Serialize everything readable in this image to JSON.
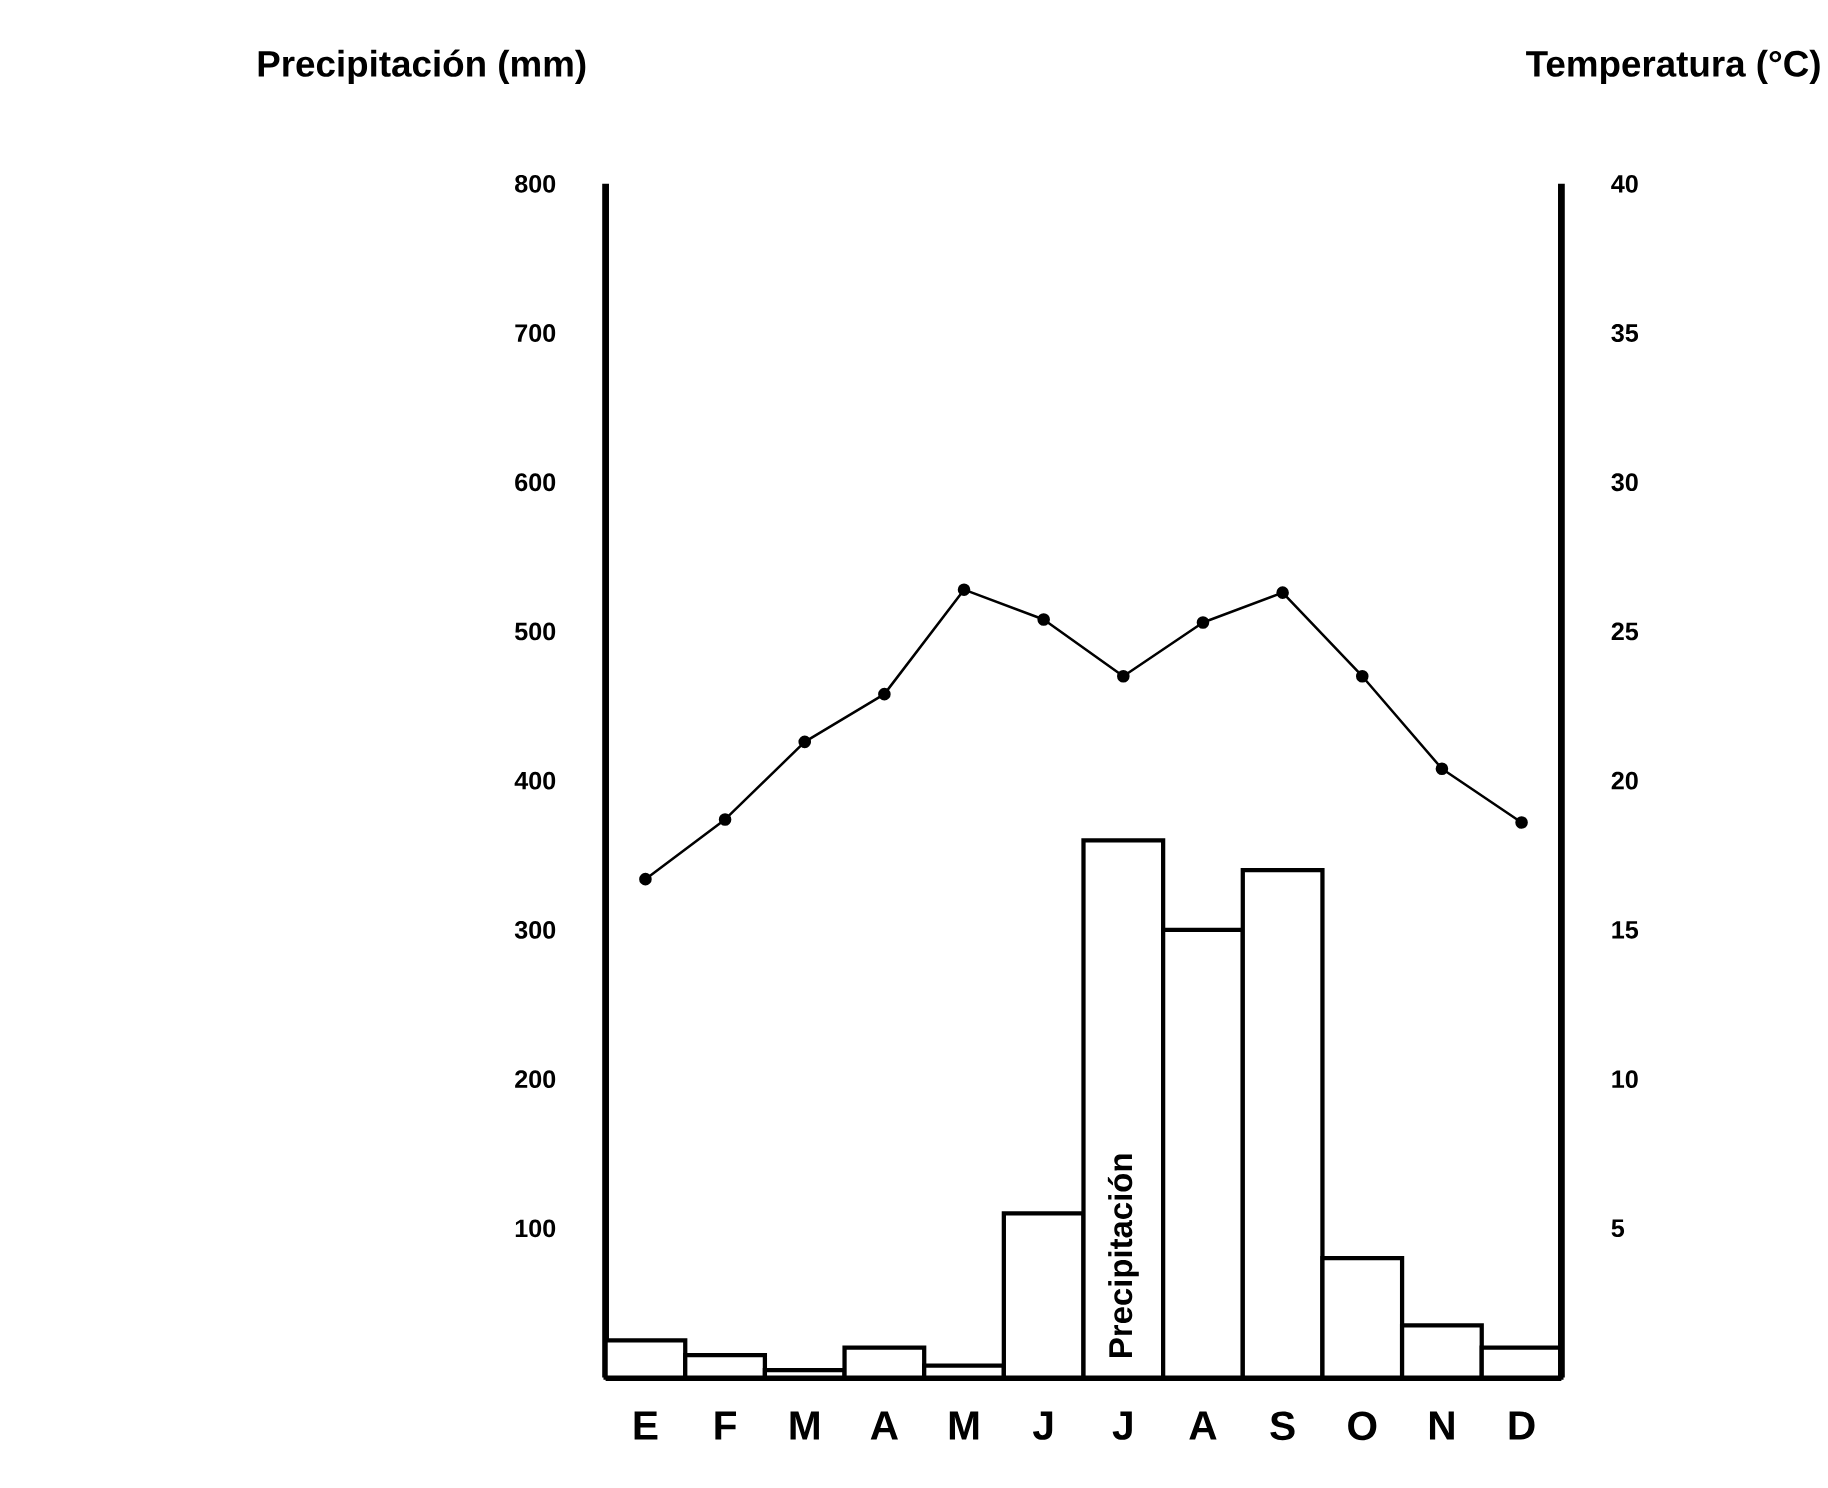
{
  "chart_data": {
    "type": "bar",
    "ylabel": "Precipitación (mm)",
    "y2label": "Temperatura (°C)",
    "categories": [
      "E",
      "F",
      "M",
      "A",
      "M",
      "J",
      "J",
      "A",
      "S",
      "O",
      "N",
      "D"
    ],
    "ylim": [
      0,
      800
    ],
    "yticks": [
      100,
      200,
      300,
      400,
      500,
      600,
      700,
      800
    ],
    "y2lim": [
      0,
      40
    ],
    "y2ticks": [
      5,
      10,
      15,
      20,
      25,
      30,
      35,
      40
    ],
    "series": [
      {
        "name": "Precipitación",
        "color": "#ffffff",
        "values": [
          25,
          15,
          5,
          20,
          8,
          110,
          360,
          300,
          340,
          80,
          35,
          20
        ]
      },
      {
        "type": "line",
        "axis": "y2",
        "color": "#000000",
        "marker": "circle",
        "values": [
          16.7,
          18.7,
          21.3,
          22.9,
          26.4,
          25.4,
          23.5,
          25.3,
          26.3,
          23.5,
          20.4,
          18.6
        ]
      }
    ]
  }
}
